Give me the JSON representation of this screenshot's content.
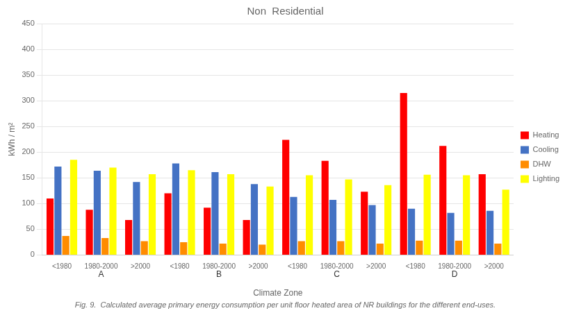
{
  "chart_data": {
    "type": "bar",
    "title": "Non  Residential",
    "ylabel": "kWh / m²",
    "xlabel": "Climate Zone",
    "caption": "Fig. 9.  Calculated average primary energy consumption per unit floor heated area of NR buildings for the different end-uses.",
    "zones": [
      "A",
      "B",
      "C",
      "D"
    ],
    "categories": [
      "<1980",
      "1980-2000",
      ">2000",
      "<1980",
      "1980-2000",
      ">2000",
      "<1980",
      "1980-2000",
      ">2000",
      "<1980",
      "1980-2000",
      ">2000"
    ],
    "series": [
      {
        "name": "Heating",
        "color": "#FF0000",
        "values": [
          110,
          88,
          68,
          120,
          92,
          68,
          224,
          183,
          123,
          315,
          212,
          157
        ]
      },
      {
        "name": "Cooling",
        "color": "#4472C4",
        "values": [
          172,
          164,
          142,
          178,
          161,
          138,
          113,
          107,
          97,
          90,
          82,
          86
        ]
      },
      {
        "name": "DHW",
        "color": "#FF8C00",
        "values": [
          37,
          33,
          27,
          25,
          22,
          20,
          27,
          27,
          22,
          28,
          28,
          22
        ]
      },
      {
        "name": "Lighting",
        "color": "#FFFF00",
        "values": [
          185,
          170,
          157,
          165,
          157,
          133,
          155,
          147,
          136,
          156,
          155,
          127
        ]
      }
    ],
    "ylim": [
      0,
      450
    ],
    "yticks": [
      0,
      50,
      100,
      150,
      200,
      250,
      300,
      350,
      400,
      450
    ],
    "grid": true,
    "legend": "right"
  }
}
